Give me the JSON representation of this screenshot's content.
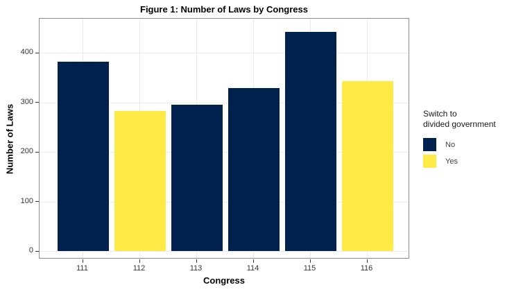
{
  "chart_data": {
    "type": "bar",
    "title": "Figure 1: Number of Laws by Congress",
    "xlabel": "Congress",
    "ylabel": "Number of Laws",
    "categories": [
      "111",
      "112",
      "113",
      "114",
      "115",
      "116"
    ],
    "series": [
      {
        "name": "Number of Laws",
        "values": [
          383,
          283,
          296,
          329,
          442,
          344
        ]
      }
    ],
    "bar_groups": [
      "No",
      "Yes",
      "No",
      "No",
      "No",
      "Yes"
    ],
    "yticks": [
      0,
      100,
      200,
      300,
      400
    ],
    "ylim": [
      0,
      469
    ],
    "grid": {
      "horizontal": "major-only",
      "vertical": "at-category-centers",
      "color": "#ebebeb"
    },
    "legend": {
      "position": "right",
      "title_line1": "Switch to",
      "title_line2": "divided government",
      "entries": [
        {
          "label": "No",
          "color": "#00204D"
        },
        {
          "label": "Yes",
          "color": "#FFEA46"
        }
      ]
    },
    "colors": {
      "no_fill": "#00204D",
      "yes_fill": "#FFEA46",
      "panel_border": "#8c8c8c",
      "grid": "#ebebeb",
      "tick": "#333333"
    }
  }
}
